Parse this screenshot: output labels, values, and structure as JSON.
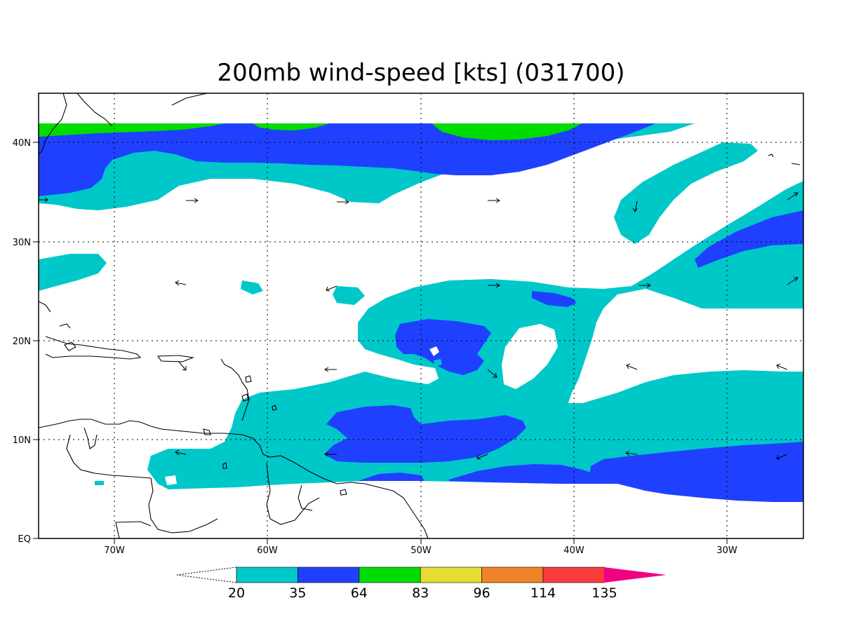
{
  "title": "200mb wind-speed [kts] (031700)",
  "lon_ticks": [
    "70W",
    "60W",
    "50W",
    "40W",
    "30W"
  ],
  "lat_ticks": [
    "40N",
    "30N",
    "20N",
    "10N",
    "EQ"
  ],
  "legend": {
    "levels": [
      "20",
      "35",
      "64",
      "83",
      "96",
      "114",
      "135"
    ],
    "colors": [
      "#00c8c8",
      "#2040ff",
      "#00dc00",
      "#e6dc32",
      "#f08228",
      "#fa3c3c",
      "#f00082"
    ]
  },
  "colors": {
    "band_20_35": "#00c8c8",
    "band_35_64": "#2040ff",
    "band_64_83": "#00dc00"
  }
}
